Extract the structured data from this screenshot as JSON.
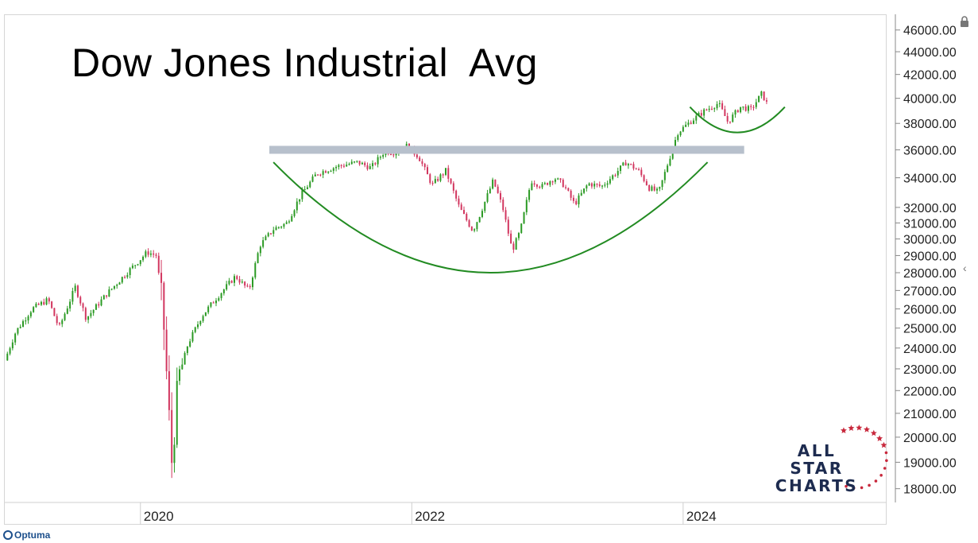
{
  "title": "Dow Jones Industrial  Avg",
  "footer": {
    "brand": "Optuma"
  },
  "logo": {
    "line1": "ALL STAR",
    "line2": "CHARTS"
  },
  "icons": {
    "lock": "lock-icon",
    "collapse": "chevron-left-icon",
    "footer": "optuma-logo-icon",
    "stars": "star-icon"
  },
  "colors": {
    "up": "#2b9a24",
    "down": "#d2365f",
    "pattern": "#228b22",
    "resistance": "#b7c0cc",
    "logo_text": "#1d2b4f",
    "logo_stars": "#c8283c"
  },
  "chart_data": {
    "type": "candlestick",
    "scale": "log",
    "ylim": [
      17500,
      47500
    ],
    "y_ticks": [
      {
        "value": 46000,
        "label": "46000.00"
      },
      {
        "value": 44000,
        "label": "44000.00"
      },
      {
        "value": 42000,
        "label": "42000.00"
      },
      {
        "value": 40000,
        "label": "40000.00"
      },
      {
        "value": 38000,
        "label": "38000.00"
      },
      {
        "value": 36000,
        "label": "36000.00"
      },
      {
        "value": 34000,
        "label": "34000.00"
      },
      {
        "value": 32000,
        "label": "32000.00"
      },
      {
        "value": 31000,
        "label": "31000.00"
      },
      {
        "value": 30000,
        "label": "30000.00"
      },
      {
        "value": 29000,
        "label": "29000.00"
      },
      {
        "value": 28000,
        "label": "28000.00"
      },
      {
        "value": 27000,
        "label": "27000.00"
      },
      {
        "value": 26000,
        "label": "26000.00"
      },
      {
        "value": 25000,
        "label": "25000.00"
      },
      {
        "value": 24000,
        "label": "24000.00"
      },
      {
        "value": 23000,
        "label": "23000.00"
      },
      {
        "value": 22000,
        "label": "22000.00"
      },
      {
        "value": 21000,
        "label": "21000.00"
      },
      {
        "value": 20000,
        "label": "20000.00"
      },
      {
        "value": 19000,
        "label": "19000.00"
      },
      {
        "value": 18000,
        "label": "18000.00"
      }
    ],
    "xlim": [
      2019.0,
      2025.5
    ],
    "x_ticks": [
      {
        "value": 2020,
        "label": "2020"
      },
      {
        "value": 2022,
        "label": "2022"
      },
      {
        "value": 2024,
        "label": "2024"
      }
    ],
    "price_path": [
      [
        2019.0,
        23400
      ],
      [
        2019.08,
        24800
      ],
      [
        2019.2,
        26000
      ],
      [
        2019.32,
        26500
      ],
      [
        2019.4,
        25000
      ],
      [
        2019.52,
        27200
      ],
      [
        2019.6,
        25500
      ],
      [
        2019.75,
        26800
      ],
      [
        2019.9,
        28000
      ],
      [
        2020.05,
        29200
      ],
      [
        2020.12,
        29000
      ],
      [
        2020.17,
        25400
      ],
      [
        2020.23,
        19000
      ],
      [
        2020.28,
        22500
      ],
      [
        2020.35,
        24200
      ],
      [
        2020.45,
        25600
      ],
      [
        2020.55,
        26500
      ],
      [
        2020.7,
        27800
      ],
      [
        2020.8,
        27000
      ],
      [
        2020.88,
        29600
      ],
      [
        2020.98,
        30600
      ],
      [
        2021.08,
        31000
      ],
      [
        2021.18,
        32800
      ],
      [
        2021.3,
        34300
      ],
      [
        2021.45,
        34800
      ],
      [
        2021.6,
        35100
      ],
      [
        2021.7,
        34700
      ],
      [
        2021.8,
        35900
      ],
      [
        2021.88,
        35800
      ],
      [
        2021.96,
        36300
      ],
      [
        2022.05,
        35500
      ],
      [
        2022.15,
        33500
      ],
      [
        2022.25,
        34500
      ],
      [
        2022.35,
        32000
      ],
      [
        2022.45,
        30500
      ],
      [
        2022.5,
        31500
      ],
      [
        2022.6,
        33800
      ],
      [
        2022.67,
        32000
      ],
      [
        2022.74,
        29300
      ],
      [
        2022.8,
        30500
      ],
      [
        2022.88,
        33800
      ],
      [
        2022.96,
        33400
      ],
      [
        2023.05,
        34000
      ],
      [
        2023.12,
        33500
      ],
      [
        2023.2,
        32200
      ],
      [
        2023.3,
        33600
      ],
      [
        2023.4,
        33400
      ],
      [
        2023.5,
        34300
      ],
      [
        2023.58,
        35100
      ],
      [
        2023.67,
        34500
      ],
      [
        2023.75,
        33300
      ],
      [
        2023.82,
        33000
      ],
      [
        2023.9,
        35400
      ],
      [
        2023.96,
        37300
      ],
      [
        2024.06,
        38200
      ],
      [
        2024.16,
        39000
      ],
      [
        2024.26,
        39600
      ],
      [
        2024.33,
        38100
      ],
      [
        2024.42,
        39300
      ],
      [
        2024.5,
        39100
      ],
      [
        2024.58,
        40400
      ],
      [
        2024.62,
        39500
      ]
    ],
    "overlays": [
      {
        "type": "horizontal_band",
        "label": "resistance",
        "value": 36000,
        "x_start": 2020.95,
        "x_end": 2024.45
      },
      {
        "type": "arc",
        "label": "cup",
        "x_start": 2020.98,
        "x_end": 2024.18,
        "y_end": 35100,
        "y_bottom": 28000
      },
      {
        "type": "arc",
        "label": "handle",
        "x_start": 2024.05,
        "x_end": 2024.75,
        "y_end": 39300,
        "y_bottom": 37300
      }
    ]
  }
}
